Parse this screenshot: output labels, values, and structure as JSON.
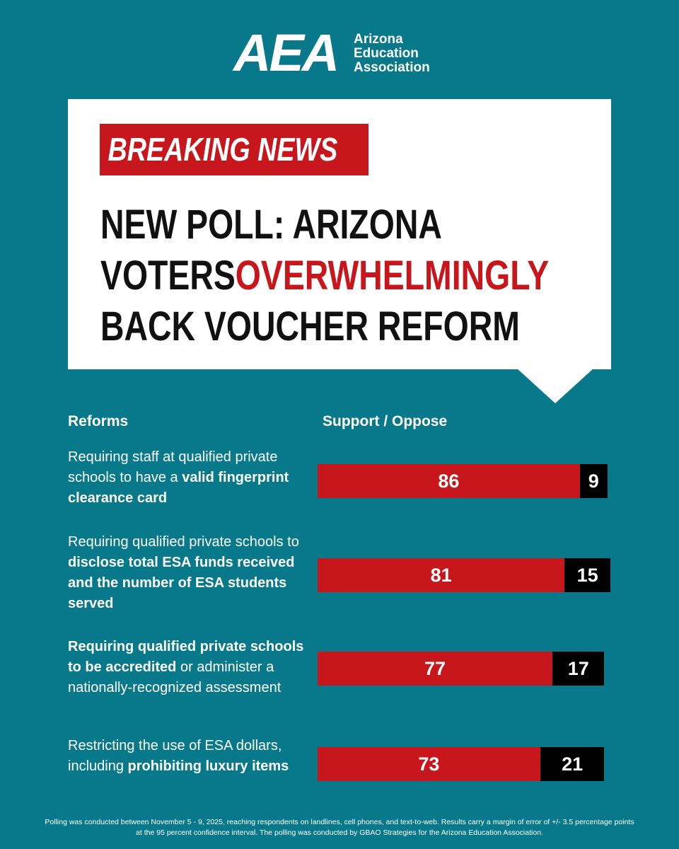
{
  "logo": {
    "mark": "AEA",
    "name": [
      "Arizona",
      "Education",
      "Association"
    ]
  },
  "header": {
    "badge": "BREAKING NEWS",
    "title": [
      {
        "text": "NEW POLL: ARIZONA VOTERS",
        "highlight": false
      },
      {
        "text": "OVERWHELMINGLY",
        "highlight": true
      },
      {
        "text": " BACK VOUCHER REFORM",
        "highlight": false
      }
    ]
  },
  "chart_data": {
    "type": "stacked-bar",
    "category_header": "Reforms",
    "value_header": "Support / Oppose",
    "categories": [
      [
        {
          "text": "Requiring staff at qualified private schools to have a ",
          "bold": false
        },
        {
          "text": "valid fingerprint clearance card",
          "bold": true
        }
      ],
      [
        {
          "text": "Requiring qualified private schools to ",
          "bold": false
        },
        {
          "text": "disclose total ESA funds received and the number of ESA students served",
          "bold": true
        }
      ],
      [
        {
          "text": "Requiring qualified private schools to be accredited",
          "bold": true
        },
        {
          "text": " or administer a nationally-recognized assessment",
          "bold": false
        }
      ],
      [
        {
          "text": "Restricting the use of ESA dollars, including ",
          "bold": false
        },
        {
          "text": "prohibiting luxury items",
          "bold": true
        }
      ]
    ],
    "series": [
      {
        "color": "#c8161d",
        "values": [
          86,
          81,
          77,
          73
        ]
      },
      {
        "color": "#000000",
        "values": [
          9,
          15,
          17,
          21
        ]
      }
    ]
  },
  "footnote": "Polling was conducted between November 5 - 9, 2025, reaching respondents on landlines, cell phones, and text-to-web. Results carry a margin of error of +/- 3.5 percentage points at the 95 percent confidence interval. The polling was conducted by GBAO Strategies for the Arizona Education Association."
}
